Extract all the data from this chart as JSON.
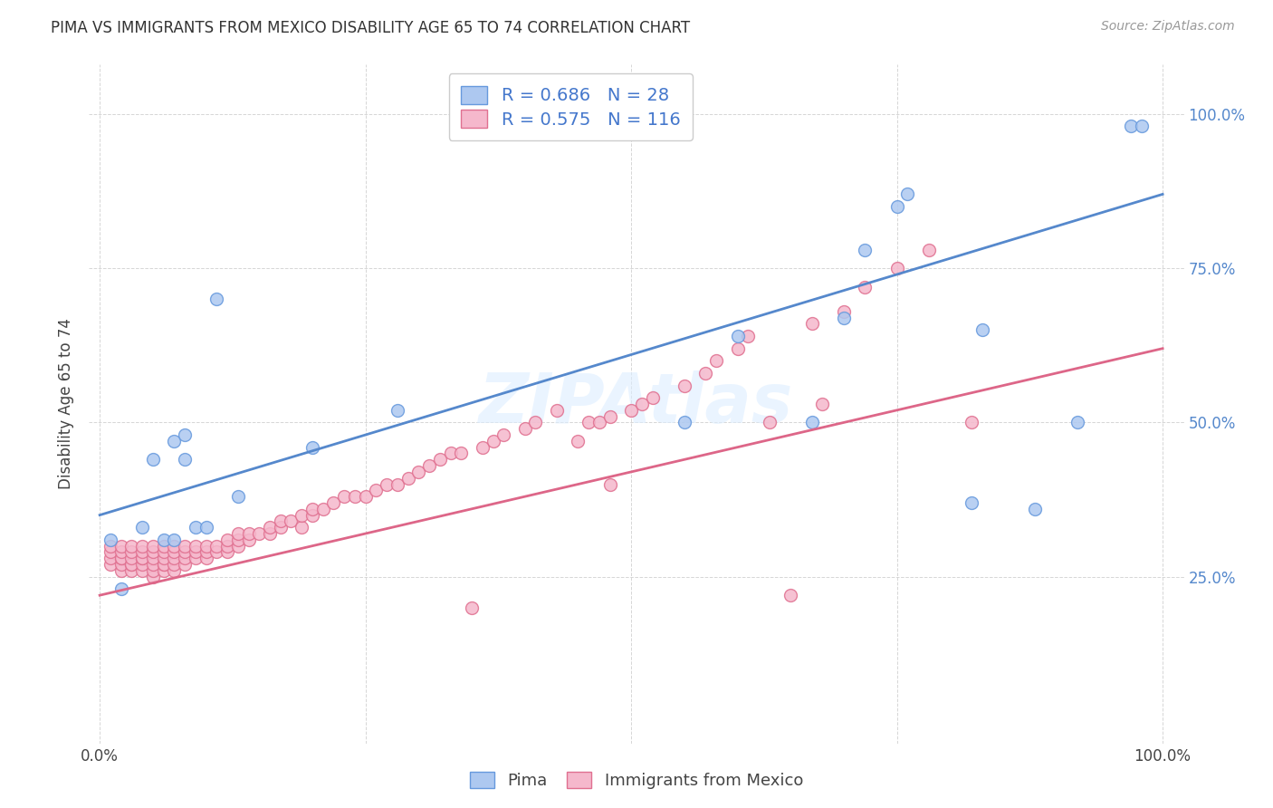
{
  "title": "PIMA VS IMMIGRANTS FROM MEXICO DISABILITY AGE 65 TO 74 CORRELATION CHART",
  "source": "Source: ZipAtlas.com",
  "ylabel": "Disability Age 65 to 74",
  "xlim": [
    0,
    1.0
  ],
  "ylim": [
    0,
    1.0
  ],
  "legend_labels": [
    "Pima",
    "Immigrants from Mexico"
  ],
  "blue_R": 0.686,
  "blue_N": 28,
  "pink_R": 0.575,
  "pink_N": 116,
  "blue_color": "#adc8f0",
  "pink_color": "#f5b8cc",
  "blue_edge_color": "#6699dd",
  "pink_edge_color": "#e07090",
  "blue_line_color": "#5588cc",
  "pink_line_color": "#dd6688",
  "blue_line_start": 0.35,
  "blue_line_end": 0.87,
  "pink_line_start": 0.22,
  "pink_line_end": 0.62,
  "blue_scatter_x": [
    0.01,
    0.02,
    0.04,
    0.05,
    0.06,
    0.07,
    0.07,
    0.08,
    0.08,
    0.09,
    0.1,
    0.11,
    0.13,
    0.2,
    0.28,
    0.55,
    0.6,
    0.67,
    0.7,
    0.72,
    0.75,
    0.76,
    0.82,
    0.83,
    0.88,
    0.92,
    0.97,
    0.98
  ],
  "blue_scatter_y": [
    0.31,
    0.23,
    0.33,
    0.44,
    0.31,
    0.31,
    0.47,
    0.44,
    0.48,
    0.33,
    0.33,
    0.7,
    0.38,
    0.46,
    0.52,
    0.5,
    0.64,
    0.5,
    0.67,
    0.78,
    0.85,
    0.87,
    0.37,
    0.65,
    0.36,
    0.5,
    0.98,
    0.98
  ],
  "pink_scatter_x": [
    0.01,
    0.01,
    0.01,
    0.01,
    0.02,
    0.02,
    0.02,
    0.02,
    0.02,
    0.02,
    0.03,
    0.03,
    0.03,
    0.03,
    0.03,
    0.03,
    0.04,
    0.04,
    0.04,
    0.04,
    0.04,
    0.04,
    0.05,
    0.05,
    0.05,
    0.05,
    0.05,
    0.05,
    0.06,
    0.06,
    0.06,
    0.06,
    0.06,
    0.06,
    0.07,
    0.07,
    0.07,
    0.07,
    0.07,
    0.08,
    0.08,
    0.08,
    0.08,
    0.09,
    0.09,
    0.09,
    0.1,
    0.1,
    0.1,
    0.11,
    0.11,
    0.12,
    0.12,
    0.12,
    0.13,
    0.13,
    0.13,
    0.14,
    0.14,
    0.15,
    0.16,
    0.16,
    0.17,
    0.17,
    0.18,
    0.19,
    0.19,
    0.2,
    0.2,
    0.21,
    0.22,
    0.23,
    0.24,
    0.25,
    0.26,
    0.27,
    0.28,
    0.29,
    0.3,
    0.31,
    0.32,
    0.33,
    0.34,
    0.35,
    0.36,
    0.37,
    0.38,
    0.4,
    0.41,
    0.43,
    0.45,
    0.46,
    0.47,
    0.48,
    0.48,
    0.5,
    0.51,
    0.52,
    0.55,
    0.57,
    0.58,
    0.6,
    0.61,
    0.63,
    0.65,
    0.67,
    0.68,
    0.7,
    0.72,
    0.75,
    0.78,
    0.82
  ],
  "pink_scatter_y": [
    0.27,
    0.28,
    0.29,
    0.3,
    0.26,
    0.27,
    0.28,
    0.28,
    0.29,
    0.3,
    0.26,
    0.27,
    0.27,
    0.28,
    0.29,
    0.3,
    0.26,
    0.27,
    0.28,
    0.28,
    0.29,
    0.3,
    0.25,
    0.26,
    0.27,
    0.28,
    0.29,
    0.3,
    0.26,
    0.27,
    0.27,
    0.28,
    0.29,
    0.3,
    0.26,
    0.27,
    0.28,
    0.29,
    0.3,
    0.27,
    0.28,
    0.29,
    0.3,
    0.28,
    0.29,
    0.3,
    0.28,
    0.29,
    0.3,
    0.29,
    0.3,
    0.29,
    0.3,
    0.31,
    0.3,
    0.31,
    0.32,
    0.31,
    0.32,
    0.32,
    0.32,
    0.33,
    0.33,
    0.34,
    0.34,
    0.33,
    0.35,
    0.35,
    0.36,
    0.36,
    0.37,
    0.38,
    0.38,
    0.38,
    0.39,
    0.4,
    0.4,
    0.41,
    0.42,
    0.43,
    0.44,
    0.45,
    0.45,
    0.2,
    0.46,
    0.47,
    0.48,
    0.49,
    0.5,
    0.52,
    0.47,
    0.5,
    0.5,
    0.51,
    0.4,
    0.52,
    0.53,
    0.54,
    0.56,
    0.58,
    0.6,
    0.62,
    0.64,
    0.5,
    0.22,
    0.66,
    0.53,
    0.68,
    0.72,
    0.75,
    0.78,
    0.5
  ]
}
